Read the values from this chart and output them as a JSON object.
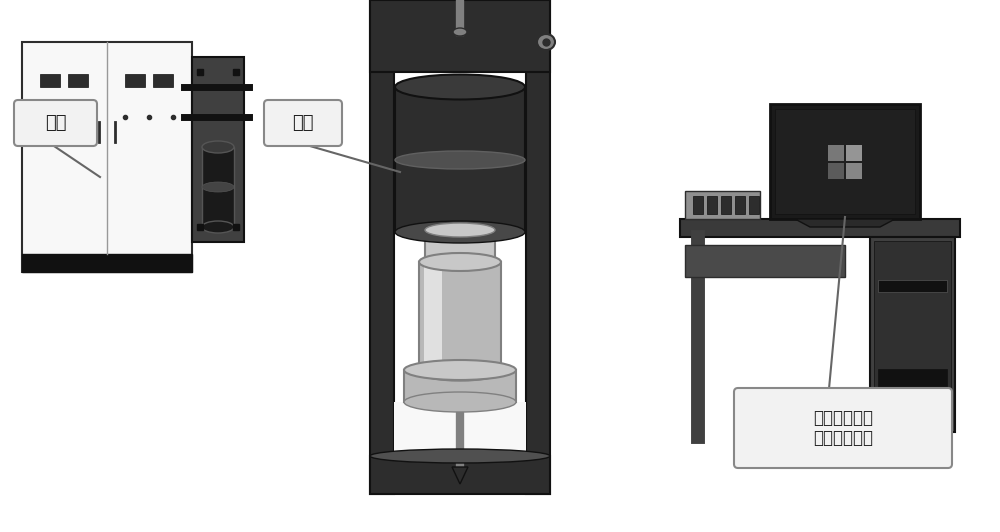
{
  "bg_color": "#ffffff",
  "fig_width": 10.0,
  "fig_height": 5.32,
  "label_yiyuan": "油源",
  "label_zhuji": "主机",
  "label_computer": "计算机控制和\n数据处理系统",
  "dark": "#2d2d2d",
  "dark2": "#404040",
  "mid": "#808080",
  "light": "#c8c8c8",
  "white": "#f8f8f8",
  "silver": "#b8b8b8",
  "near_black": "#111111",
  "panel": "#a0a0a0"
}
